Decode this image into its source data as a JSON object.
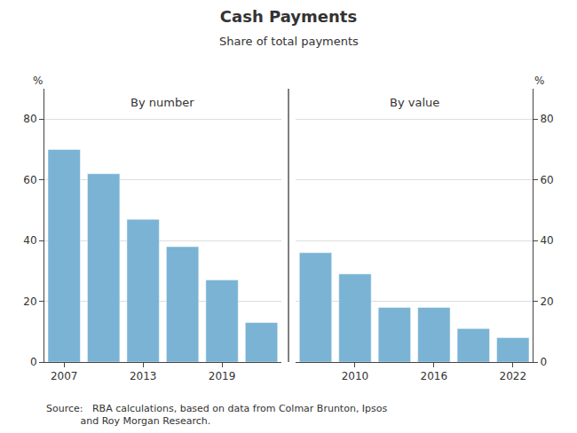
{
  "title": "Cash Payments",
  "subtitle": "Share of total payments",
  "source": [
    "Source:   RBA calculations, based on data from Colmar Brunton, Ipsos",
    "           and Roy Morgan Research."
  ],
  "chart_data": [
    {
      "type": "bar",
      "title": "By number",
      "categories": [
        "2007",
        null,
        "2013",
        null,
        "2019",
        null
      ],
      "values": [
        70,
        62,
        47,
        38,
        27,
        13
      ],
      "color": "#7ab3d4",
      "ylabel": "%",
      "ylim": [
        0,
        90
      ],
      "yticks": [
        0,
        20,
        40,
        60,
        80
      ],
      "grid": true
    },
    {
      "type": "bar",
      "title": "By value",
      "categories": [
        null,
        "2010",
        null,
        "2016",
        null,
        "2022"
      ],
      "values": [
        36,
        29,
        18,
        18,
        11,
        8
      ],
      "color": "#7ab3d4",
      "ylabel": "%",
      "ylim": [
        0,
        90
      ],
      "yticks": [
        0,
        20,
        40,
        60,
        80
      ],
      "grid": true
    }
  ]
}
